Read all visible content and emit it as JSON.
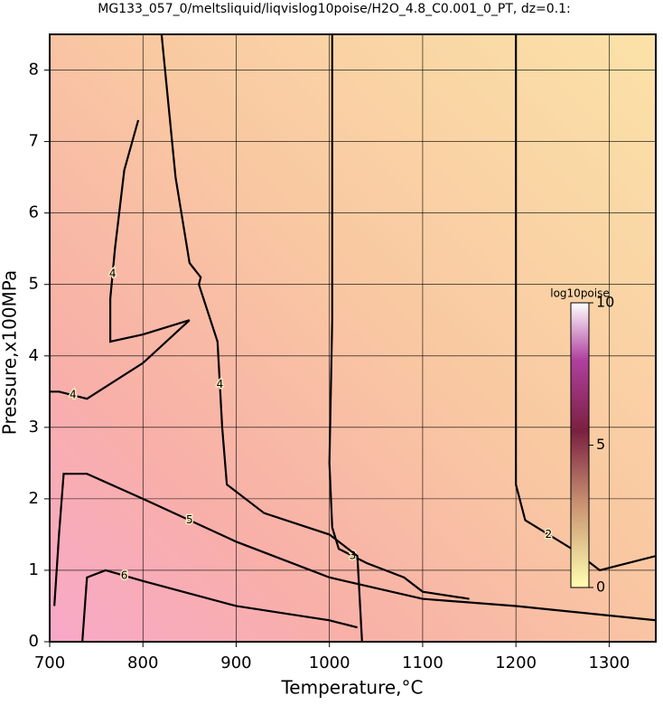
{
  "chart_data": {
    "type": "contour",
    "title": "MG133_057_0/meltsliquid/liqvislog10poise/H2O_4.8_C0.001_0_PT, dz=0.1:",
    "xlabel": "Temperature,°C",
    "ylabel": "Pressure,x100MPa",
    "xlim": [
      700,
      1350
    ],
    "ylim": [
      0,
      8.5
    ],
    "xticks": [
      700,
      800,
      900,
      1000,
      1100,
      1200,
      1300
    ],
    "yticks": [
      0,
      1,
      2,
      3,
      4,
      5,
      6,
      7,
      8
    ],
    "grid": true,
    "contours": [
      {
        "level": 2,
        "x": [
          1200,
          1200,
          1200,
          1210,
          1260,
          1290,
          1305,
          1350
        ],
        "y": [
          8.5,
          5,
          2.2,
          1.7,
          1.3,
          1.0,
          1.05,
          1.2
        ]
      },
      {
        "level": 3,
        "x": [
          1003,
          1003,
          1000,
          1003,
          1010,
          1040,
          1070,
          1080,
          1100,
          1150
        ],
        "y": [
          8.5,
          4.5,
          2.5,
          1.6,
          1.3,
          1.1,
          0.95,
          0.9,
          0.7,
          0.6
        ]
      },
      {
        "level": 4,
        "x": [
          820,
          835,
          850,
          862,
          860,
          880,
          885,
          890,
          930,
          1000,
          1030,
          1035
        ],
        "y": [
          8.5,
          6.5,
          5.3,
          5.1,
          5.0,
          4.2,
          3.0,
          2.2,
          1.8,
          1.5,
          1.2,
          0
        ]
      },
      {
        "level": 4,
        "x": [
          795,
          780,
          770,
          765,
          765,
          800,
          850
        ],
        "y": [
          7.3,
          6.6,
          5.5,
          4.8,
          4.2,
          4.3,
          4.5
        ]
      },
      {
        "level": 4,
        "x": [
          700,
          710,
          740,
          800,
          850
        ],
        "y": [
          3.5,
          3.5,
          3.4,
          3.9,
          4.5
        ]
      },
      {
        "level": 5,
        "x": [
          705,
          710,
          715,
          740,
          800,
          900,
          1000,
          1100,
          1200,
          1350
        ],
        "y": [
          0.5,
          1.5,
          2.35,
          2.35,
          2.0,
          1.4,
          0.9,
          0.6,
          0.5,
          0.3
        ]
      },
      {
        "level": 6,
        "x": [
          735,
          740,
          760,
          800,
          900,
          1000,
          1030
        ],
        "y": [
          0,
          0.9,
          1.0,
          0.85,
          0.5,
          0.3,
          0.2
        ]
      }
    ],
    "colorbar": {
      "label": "log10poise",
      "lim": [
        0,
        10
      ],
      "ticks": [
        0,
        5,
        10
      ]
    }
  }
}
